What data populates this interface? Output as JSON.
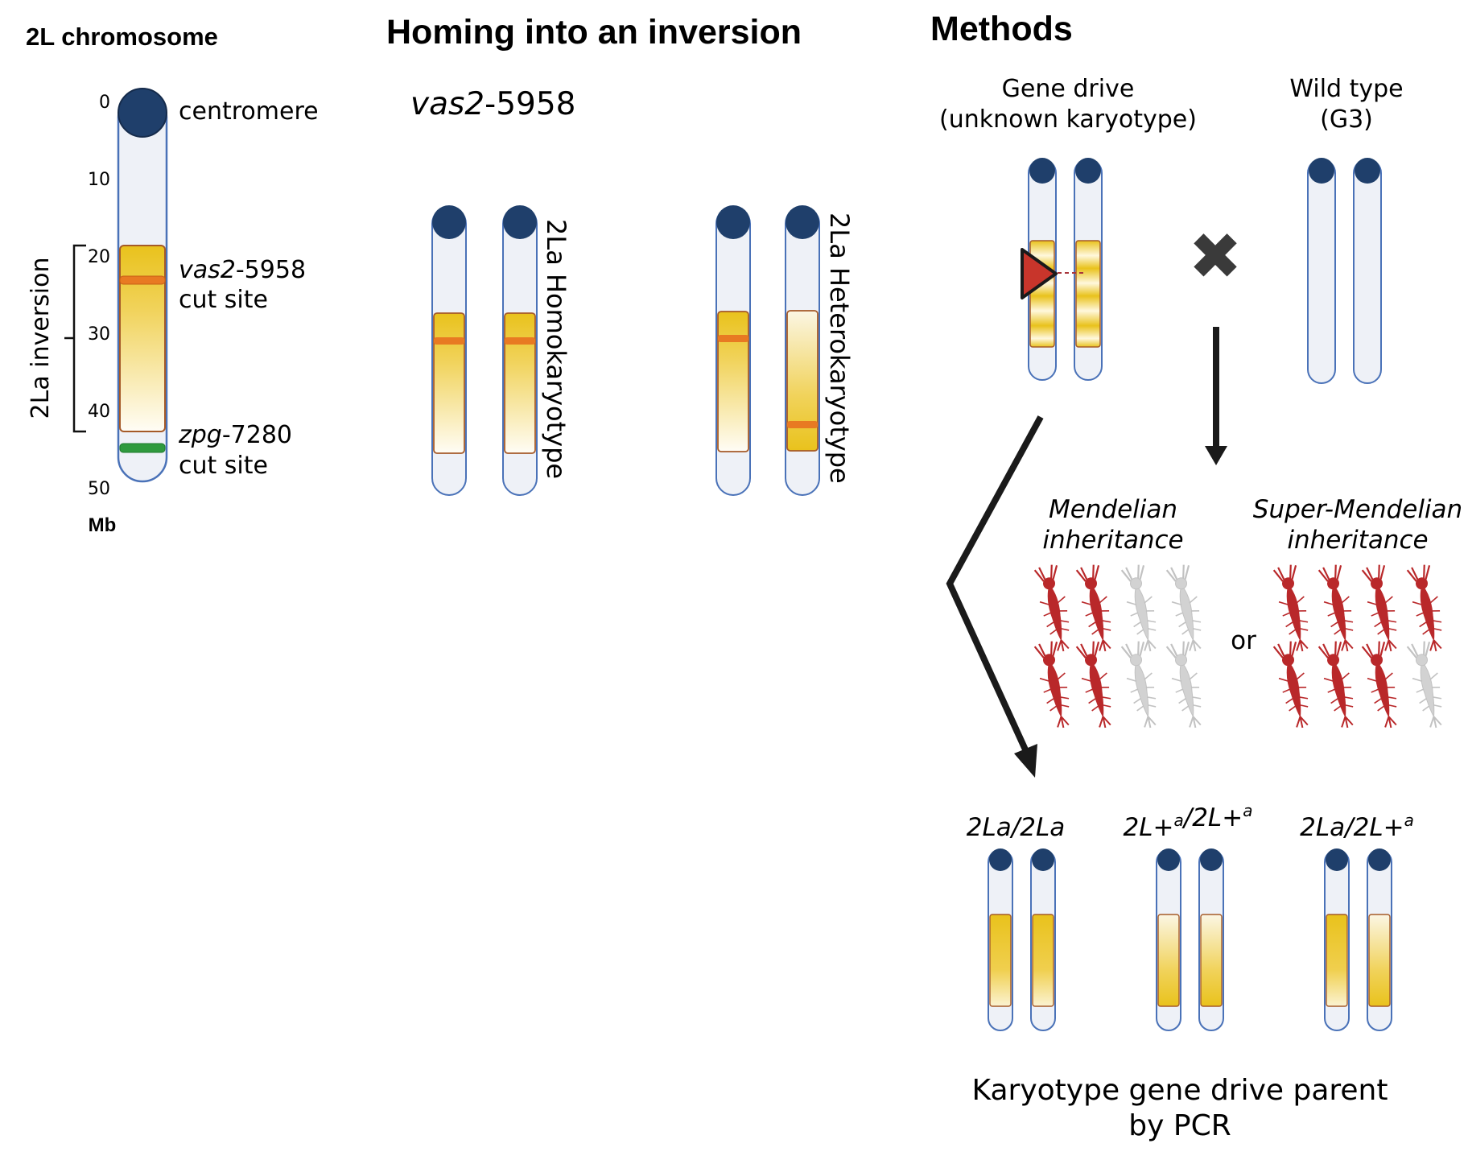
{
  "colors": {
    "centromere": "#1f3f6b",
    "chromosome_fill": "#eef1f7",
    "chromosome_outline": "#4a72b8",
    "inversion_gold": "#e9c21c",
    "cut_orange": "#e87a22",
    "zpg_green": "#2f9a3e",
    "cassette_red": "#c8352b",
    "mosquito_red": "#b9282a",
    "mosquito_grey": "#cfcfcf"
  },
  "panel_a": {
    "title": "2L chromosome",
    "ticks": [
      "0",
      "10",
      "20",
      "30",
      "40",
      "50"
    ],
    "unit": "Mb",
    "centromere_label": "centromere",
    "inversion_label": "2La inversion",
    "vas2_label": {
      "gene": "vas2",
      "suffix": "-5958",
      "line2": "cut site"
    },
    "zpg_label": {
      "gene": "zpg",
      "suffix": "-7280",
      "line2": "cut site"
    }
  },
  "panel_b": {
    "title": "Homing into an inversion",
    "construct": {
      "gene": "vas2",
      "suffix": "-5958"
    },
    "homokaryotype_label": "2La Homokaryotype",
    "heterokaryotype_label": "2La Heterokaryotype"
  },
  "panel_c": {
    "title": "Methods",
    "gene_drive_label": [
      "Gene drive",
      "(unknown karyotype)"
    ],
    "wild_type_label": [
      "Wild type",
      "(G3)"
    ],
    "cross_symbol": "✖",
    "mendelian_label": [
      "Mendelian",
      "inheritance"
    ],
    "super_mendelian_label": [
      "Super-Mendelian",
      "inheritance"
    ],
    "or_label": "or",
    "genotypes": [
      "2La/2La",
      "2L+a/2L+a",
      "2La/2L+a"
    ],
    "conclusion": [
      "Karyotype gene drive parent",
      "by PCR"
    ]
  }
}
